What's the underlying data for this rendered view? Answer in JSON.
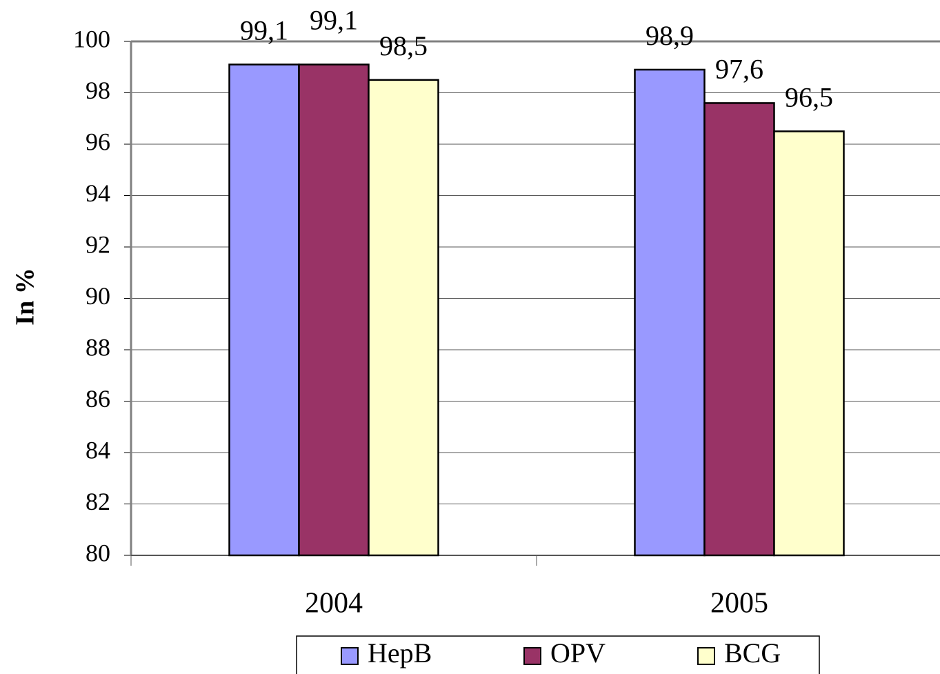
{
  "chart_data": {
    "type": "bar",
    "y_label": "In %",
    "categories": [
      "2004",
      "2005"
    ],
    "series": [
      {
        "name": "HepB",
        "color": "#9999ff",
        "values": [
          99.1,
          98.9
        ],
        "value_labels": [
          "99,1",
          "98,9"
        ]
      },
      {
        "name": "OPV",
        "color": "#993366",
        "values": [
          99.1,
          97.6
        ],
        "value_labels": [
          "99,1",
          "97,6"
        ]
      },
      {
        "name": "BCG",
        "color": "#ffffcc",
        "values": [
          98.5,
          96.5
        ],
        "value_labels": [
          "98,5",
          "96,5"
        ]
      }
    ],
    "ylim": [
      80,
      100
    ],
    "yticks": [
      80,
      82,
      84,
      86,
      88,
      90,
      92,
      94,
      96,
      98,
      100
    ],
    "grid": true,
    "legend": "bottom"
  }
}
